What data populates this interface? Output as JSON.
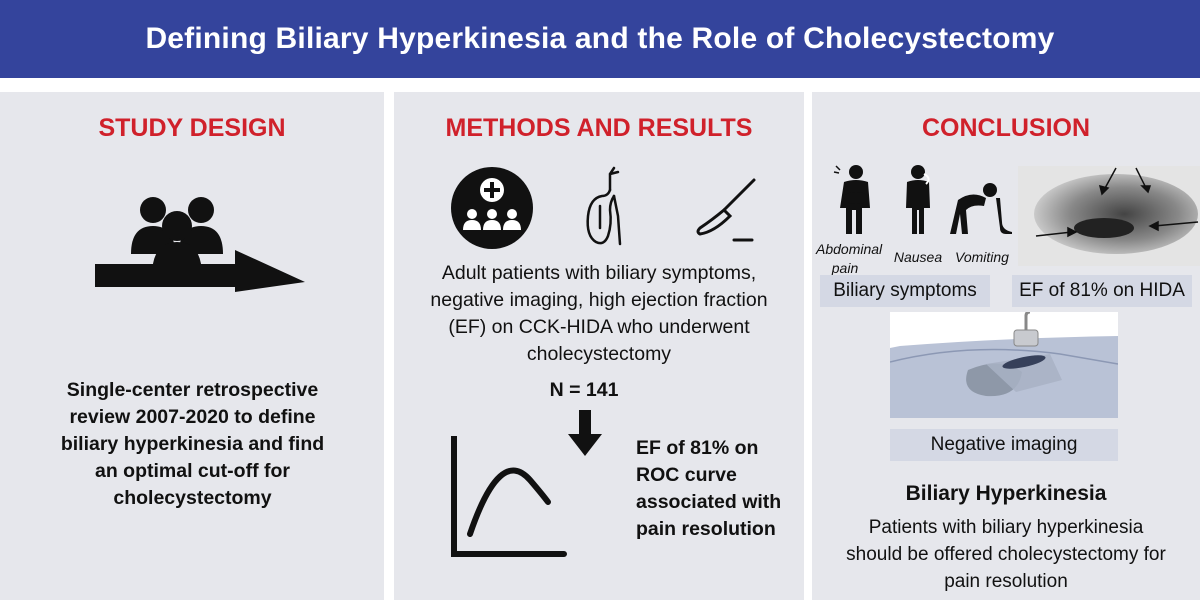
{
  "header": {
    "title": "Defining Biliary Hyperkinesia and the Role of Cholecystectomy"
  },
  "study_design": {
    "title": "STUDY DESIGN",
    "text": "Single-center retrospective review 2007-2020 to define biliary hyperkinesia and find an optimal cut-off for cholecystectomy"
  },
  "methods": {
    "title": "METHODS AND RESULTS",
    "patients_text": "Adult patients with biliary symptoms, negative imaging, high ejection fraction (EF) on CCK-HIDA who underwent cholecystectomy",
    "n_text": "N = 141",
    "result_text": "EF of 81% on ROC curve associated with pain resolution"
  },
  "conclusion": {
    "title": "CONCLUSION",
    "label_abdominal": "Abdominal pain",
    "label_nausea": "Nausea",
    "label_vomiting": "Vomiting",
    "pill_symptoms": "Biliary symptoms",
    "pill_hida": "EF of 81% on HIDA",
    "pill_imaging": "Negative imaging",
    "bh_title": "Biliary Hyperkinesia",
    "bh_text": "Patients with biliary hyperkinesia should be offered cholecystectomy for pain resolution"
  }
}
